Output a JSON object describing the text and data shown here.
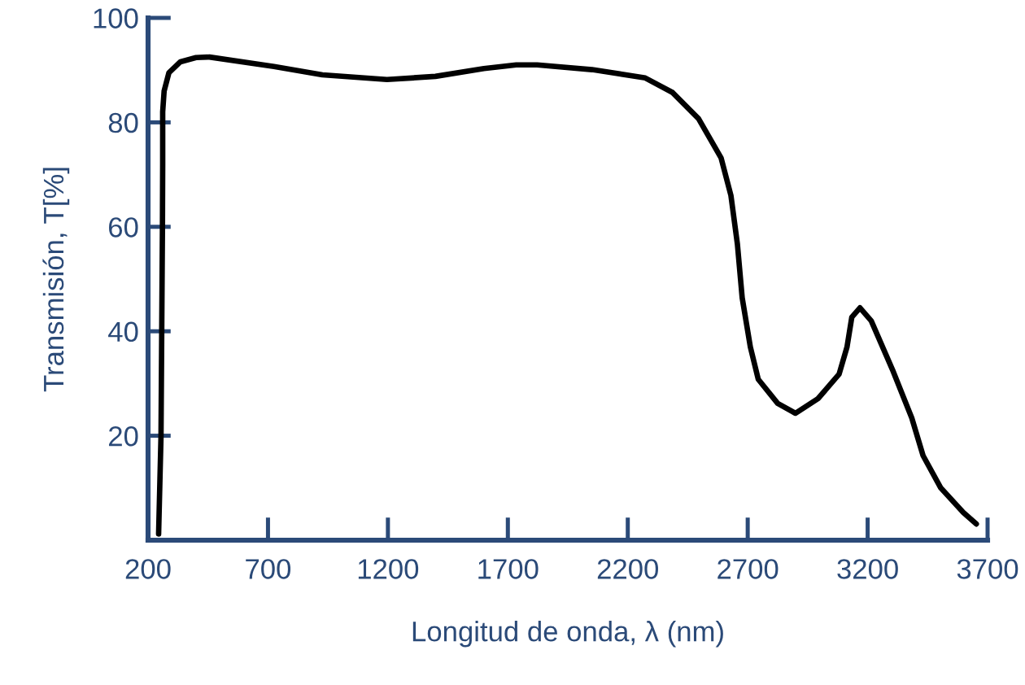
{
  "chart_data": {
    "type": "line",
    "xlabel": "Longitud de onda, λ (nm)",
    "ylabel": "Transmisión, T[%]",
    "xlim": [
      200,
      3700
    ],
    "ylim": [
      0,
      100
    ],
    "xticks": [
      200,
      700,
      1200,
      1700,
      2200,
      2700,
      3200,
      3700
    ],
    "yticks": [
      20,
      40,
      60,
      80,
      100
    ],
    "grid": false,
    "marker": "none",
    "line_style": "solid",
    "series": [
      {
        "color": "#000000",
        "x": [
          244,
          254,
          260,
          261,
          261,
          267,
          287,
          335,
          400,
          456,
          725,
          927,
          1196,
          1398,
          1600,
          1735,
          1822,
          2051,
          2273,
          2387,
          2495,
          2589,
          2630,
          2657,
          2677,
          2711,
          2744,
          2825,
          2899,
          2993,
          3081,
          3114,
          3134,
          3168,
          3215,
          3303,
          3384,
          3431,
          3505,
          3599,
          3653
        ],
        "values": [
          1.2,
          20,
          60,
          72,
          82,
          86,
          89.5,
          91.6,
          92.4,
          92.5,
          90.7,
          89.1,
          88.2,
          88.8,
          90.3,
          91,
          91,
          90.1,
          88.5,
          85.7,
          80.7,
          73.2,
          66,
          56.7,
          46.4,
          37,
          30.8,
          26.2,
          24.3,
          27.1,
          31.8,
          37,
          42.7,
          44.5,
          42,
          32.7,
          23.4,
          16.2,
          10,
          5.3,
          3.1
        ]
      }
    ]
  }
}
